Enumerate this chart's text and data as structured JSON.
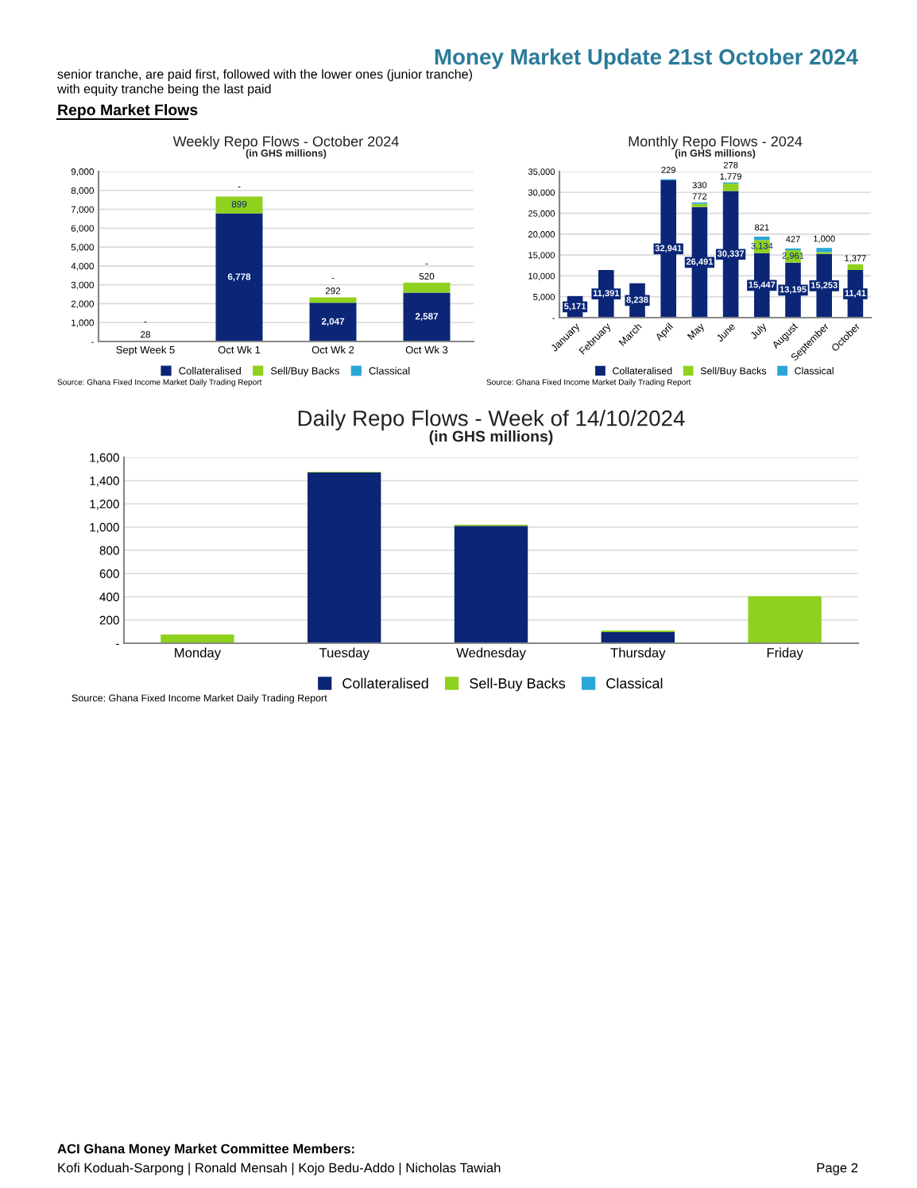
{
  "chart_data": [
    {
      "type": "bar",
      "title": "Weekly Repo Flows - October 2024",
      "subtitle": "(in GHS millions)",
      "stacked": true,
      "grid": "y",
      "legend": "bottom",
      "categories": [
        "Sept Week 5",
        "Oct Wk 1",
        "Oct Wk 2",
        "Oct Wk 3"
      ],
      "ylim": [
        0,
        9000
      ],
      "yticks": [
        {
          "value": 0,
          "label": "-"
        },
        {
          "value": 1000,
          "label": "1,000"
        },
        {
          "value": 2000,
          "label": "2,000"
        },
        {
          "value": 3000,
          "label": "3,000"
        },
        {
          "value": 4000,
          "label": "4,000"
        },
        {
          "value": 5000,
          "label": "5,000"
        },
        {
          "value": 6000,
          "label": "6,000"
        },
        {
          "value": 7000,
          "label": "7,000"
        },
        {
          "value": 8000,
          "label": "8,000"
        },
        {
          "value": 9000,
          "label": "9,000"
        }
      ],
      "series": [
        {
          "name": "Collateralised",
          "color": "#0b2677",
          "values": [
            0,
            6778,
            2047,
            2587
          ],
          "value_labels": [
            null,
            "6,778",
            "2,047",
            "2,587"
          ]
        },
        {
          "name": "Sell/Buy Backs",
          "color": "#8fd11f",
          "values": [
            28,
            899,
            292,
            520
          ],
          "value_labels": [
            "28",
            "899",
            "292",
            "520"
          ]
        },
        {
          "name": "Classical",
          "color": "#2aa6d6",
          "values": [
            0,
            0,
            0,
            0
          ],
          "value_labels": [
            "-",
            "-",
            "-",
            "-"
          ]
        }
      ],
      "annotations": [
        "Source: Ghana Fixed Income Market Daily Trading Report",
        "Money Market Update 21st October 2024",
        "senior tranche, are paid first, followed with the lower ones (junior tranche)\nwith equity tranche being the last paid",
        "Repo Market Flows",
        "ACI Ghana Money Market Committee Members:",
        "Kofi Koduah-Sarpong | Ronald Mensah | Kojo Bedu-Addo | Nicholas Tawiah",
        "Page 2"
      ]
    },
    {
      "type": "bar",
      "title": "Monthly Repo Flows - 2024",
      "subtitle": "(in GHS millions)",
      "stacked": true,
      "grid": "y",
      "legend": "bottom",
      "categories": [
        "January",
        "February",
        "March",
        "April",
        "May",
        "June",
        "July",
        "August",
        "September",
        "October"
      ],
      "ylim": [
        0,
        35000
      ],
      "yticks": [
        {
          "value": 0,
          "label": "-"
        },
        {
          "value": 5000,
          "label": "5,000"
        },
        {
          "value": 10000,
          "label": "10,000"
        },
        {
          "value": 15000,
          "label": "15,000"
        },
        {
          "value": 20000,
          "label": "20,000"
        },
        {
          "value": 25000,
          "label": "25,000"
        },
        {
          "value": 30000,
          "label": "30,000"
        },
        {
          "value": 35000,
          "label": "35,000"
        }
      ],
      "series": [
        {
          "name": "Collateralised",
          "color": "#0b2677",
          "values": [
            5171,
            11391,
            8238,
            32941,
            26491,
            30337,
            15447,
            13195,
            15253,
            11410
          ],
          "value_labels": [
            "5,171",
            "11,391",
            "8,238",
            "32,941",
            "26,491",
            "30,337",
            "15,447",
            "13,195",
            "15,253",
            null
          ]
        },
        {
          "name": "Sell/Buy Backs",
          "color": "#8fd11f",
          "values": [
            0,
            0,
            0,
            0,
            772,
            1779,
            3134,
            2961,
            450,
            1377
          ],
          "value_labels": [
            null,
            null,
            null,
            null,
            "772",
            "1,779",
            "3,134",
            "2,961",
            null,
            "1,377"
          ]
        },
        {
          "name": "Classical",
          "color": "#2aa6d6",
          "values": [
            0,
            0,
            0,
            229,
            330,
            278,
            821,
            427,
            1000,
            0
          ],
          "value_labels": [
            null,
            null,
            null,
            "229",
            "330",
            "278",
            "821",
            "427",
            "1,000",
            null
          ]
        }
      ],
      "annotations": [
        "Source: Ghana Fixed Income Market Daily Trading Report",
        {
          "text": "11,41",
          "x": "October",
          "y": 5700
        }
      ]
    },
    {
      "type": "bar",
      "title": "Daily Repo Flows - Week of 14/10/2024",
      "subtitle": "(in GHS millions)",
      "stacked": true,
      "grid": "y",
      "legend": "bottom",
      "categories": [
        "Monday",
        "Tuesday",
        "Wednesday",
        "Thursday",
        "Friday"
      ],
      "ylim": [
        0,
        1600
      ],
      "yticks": [
        {
          "value": 0,
          "label": "-"
        },
        {
          "value": 200,
          "label": "200"
        },
        {
          "value": 400,
          "label": "400"
        },
        {
          "value": 600,
          "label": "600"
        },
        {
          "value": 800,
          "label": "800"
        },
        {
          "value": 1000,
          "label": "1,000"
        },
        {
          "value": 1200,
          "label": "1,200"
        },
        {
          "value": 1400,
          "label": "1,400"
        },
        {
          "value": 1600,
          "label": "1,600"
        }
      ],
      "series": [
        {
          "name": "Collateralised",
          "color": "#0b2677",
          "values": [
            0,
            1470,
            1010,
            95,
            0
          ]
        },
        {
          "name": "Sell-Buy Backs",
          "color": "#8fd11f",
          "values": [
            75,
            5,
            10,
            15,
            405
          ]
        },
        {
          "name": "Classical",
          "color": "#2aa6d6",
          "values": [
            0,
            0,
            0,
            0,
            0
          ]
        }
      ],
      "annotations": [
        "Source: Ghana Fixed Income Market Daily Trading Report"
      ]
    }
  ]
}
